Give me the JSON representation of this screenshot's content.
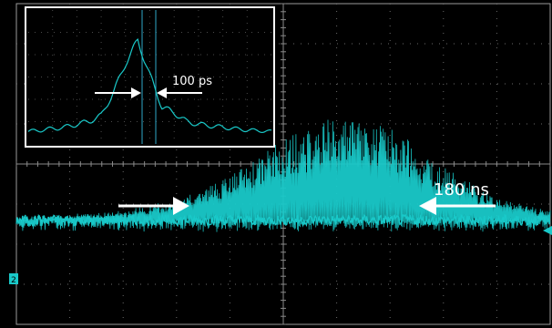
{
  "colors": {
    "background": "#000000",
    "frame": "#c8c8c8",
    "grid": "#6a6a6a",
    "trace": "#19c9c9",
    "annotation": "#ffffff",
    "cursor": "#2fa8c8"
  },
  "icons": {
    "ground_marker": "ground-reference-marker",
    "trigger_marker": "trigger-level-arrow"
  },
  "channel_marker": "2",
  "chart_data": [
    {
      "type": "line",
      "name": "pulse-train-envelope",
      "grid": true,
      "annotation": "180 ns",
      "x": [
        0,
        1,
        2,
        3,
        4,
        5,
        6,
        7,
        8,
        9,
        10
      ],
      "xlim": [
        0,
        10
      ],
      "ylim": [
        -4,
        4
      ],
      "baseline": -1.4,
      "envelope_peak": [
        0.05,
        0.1,
        0.2,
        0.45,
        1.1,
        2.0,
        2.55,
        2.35,
        1.3,
        0.55,
        0.2
      ],
      "noise_amplitude": 0.12
    },
    {
      "type": "line",
      "name": "single-pulse-inset",
      "grid": true,
      "annotation": "100 ps",
      "x": [
        0,
        0.5,
        1,
        1.5,
        2,
        2.5,
        3,
        3.5,
        4,
        4.5,
        5,
        5.5,
        6,
        6.5,
        7,
        7.5,
        8,
        8.5,
        9,
        9.5,
        10
      ],
      "values": [
        0.05,
        0.1,
        0.15,
        0.2,
        0.3,
        0.4,
        0.6,
        1.4,
        2.4,
        3.2,
        2.0,
        0.9,
        0.7,
        0.4,
        0.3,
        0.25,
        0.2,
        0.15,
        0.1,
        0.08,
        0.05
      ],
      "xlim": [
        0,
        10
      ],
      "ylim": [
        0,
        4
      ]
    }
  ]
}
